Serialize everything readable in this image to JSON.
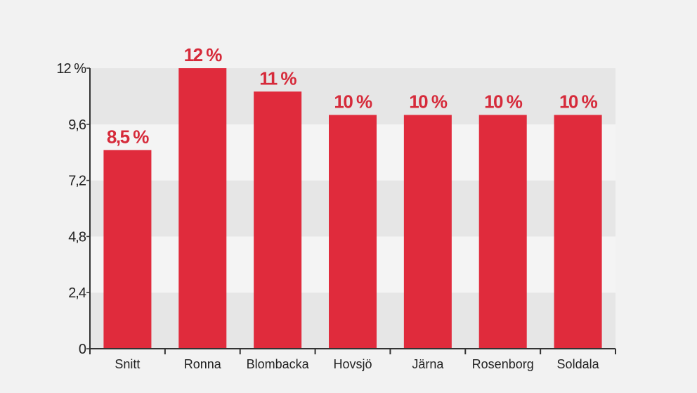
{
  "chart_data": {
    "type": "bar",
    "categories": [
      "Snitt",
      "Ronna",
      "Blombacka",
      "Hovsjö",
      "Järna",
      "Rosenborg",
      "Soldala"
    ],
    "values": [
      8.5,
      12,
      11,
      10,
      10,
      10,
      10
    ],
    "data_labels": [
      "8,5 %",
      "12 %",
      "11 %",
      "10 %",
      "10 %",
      "10 %",
      "10 %"
    ],
    "y_ticks": [
      0,
      2.4,
      4.8,
      7.2,
      9.6,
      12
    ],
    "y_tick_labels": [
      "0",
      "2,4",
      "4,8",
      "7,2",
      "9,6",
      "12 %"
    ],
    "ylim": [
      0,
      12
    ],
    "grid": "alternating bands",
    "title": "",
    "xlabel": "",
    "ylabel": "",
    "colors": {
      "bar": "#e02b3c",
      "label": "#d62a3a",
      "band_dark": "#e6e6e6",
      "band_light": "#f4f4f4",
      "axis": "#333333"
    }
  }
}
